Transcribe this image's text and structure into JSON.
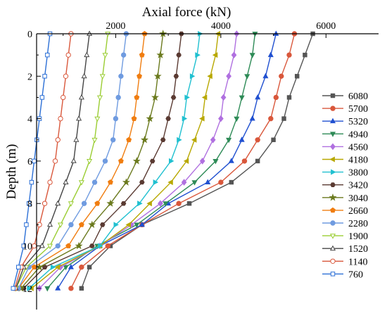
{
  "chart_data": {
    "type": "line",
    "xlabel": "Axial force (kN)",
    "ylabel": "Depth (m)",
    "xlim": [
      0,
      7000
    ],
    "ylim": [
      13,
      0
    ],
    "x_ticks": [
      2000,
      4000,
      6000
    ],
    "y_ticks": [
      0,
      2,
      4,
      6,
      8,
      10,
      12
    ],
    "x_axis_position": "top",
    "y_inverted": true,
    "grid": false,
    "legend_position": "right",
    "depths": [
      0,
      1,
      2,
      3,
      4,
      5,
      6,
      7,
      8,
      9,
      10,
      11,
      12
    ],
    "series": [
      {
        "name": "6080",
        "color": "#555555",
        "marker": "square",
        "values": [
          5750,
          5600,
          5450,
          5300,
          5200,
          5000,
          4700,
          4200,
          3400,
          2500,
          1900,
          1500,
          1350
        ]
      },
      {
        "name": "5700",
        "color": "#d9573b",
        "marker": "circle",
        "values": [
          5400,
          5300,
          5150,
          5050,
          4950,
          4700,
          4450,
          4000,
          3200,
          2500,
          1850,
          1350,
          1150
        ]
      },
      {
        "name": "5320",
        "color": "#2050d0",
        "marker": "triangle-up",
        "values": [
          5050,
          4950,
          4850,
          4700,
          4600,
          4400,
          4200,
          3750,
          3000,
          2500,
          1700,
          1150,
          900
        ]
      },
      {
        "name": "4940",
        "color": "#2e8b57",
        "marker": "triangle-down",
        "values": [
          4650,
          4600,
          4500,
          4400,
          4300,
          4150,
          3900,
          3500,
          2950,
          2400,
          1650,
          1050,
          700
        ]
      },
      {
        "name": "4560",
        "color": "#b070e0",
        "marker": "diamond",
        "values": [
          4300,
          4250,
          4150,
          4050,
          4000,
          3850,
          3650,
          3300,
          2850,
          2300,
          1700,
          950,
          550
        ]
      },
      {
        "name": "4180",
        "color": "#b8a800",
        "marker": "triangle-left",
        "values": [
          3950,
          3900,
          3800,
          3700,
          3650,
          3500,
          3350,
          3050,
          2650,
          2250,
          1700,
          900,
          400
        ]
      },
      {
        "name": "3800",
        "color": "#20c0d0",
        "marker": "triangle-right",
        "values": [
          3600,
          3550,
          3450,
          3350,
          3300,
          3200,
          3050,
          2750,
          2450,
          2000,
          1700,
          800,
          350
        ]
      },
      {
        "name": "3420",
        "color": "#5a3a32",
        "marker": "hexagon",
        "values": [
          3250,
          3200,
          3150,
          3100,
          3000,
          2900,
          2700,
          2500,
          2150,
          1750,
          1550,
          650,
          250
        ]
      },
      {
        "name": "3040",
        "color": "#6b7a1e",
        "marker": "star",
        "values": [
          2900,
          2850,
          2800,
          2750,
          2650,
          2550,
          2400,
          2200,
          1900,
          1550,
          1300,
          550,
          200
        ]
      },
      {
        "name": "2660",
        "color": "#f07d10",
        "marker": "pentagon",
        "values": [
          2550,
          2500,
          2450,
          2400,
          2350,
          2250,
          2100,
          1900,
          1650,
          1350,
          1100,
          450,
          150
        ]
      },
      {
        "name": "2280",
        "color": "#6f9be0",
        "marker": "circle",
        "values": [
          2200,
          2150,
          2100,
          2050,
          2000,
          1950,
          1800,
          1600,
          1400,
          1150,
          900,
          350,
          150
        ]
      },
      {
        "name": "1900",
        "color": "#9acd32",
        "marker": "triangle-down-open",
        "values": [
          1850,
          1800,
          1750,
          1700,
          1650,
          1600,
          1500,
          1350,
          1150,
          950,
          750,
          300,
          100
        ]
      },
      {
        "name": "1520",
        "color": "#444444",
        "marker": "triangle-up-open",
        "values": [
          1500,
          1450,
          1400,
          1350,
          1300,
          1250,
          1200,
          1050,
          900,
          750,
          600,
          250,
          100
        ]
      },
      {
        "name": "1140",
        "color": "#d9573b",
        "marker": "circle-open",
        "values": [
          1150,
          1100,
          1050,
          1000,
          950,
          900,
          850,
          750,
          650,
          550,
          450,
          200,
          80
        ]
      },
      {
        "name": "760",
        "color": "#2b6fd6",
        "marker": "square-open",
        "values": [
          750,
          700,
          650,
          600,
          550,
          500,
          450,
          400,
          350,
          300,
          250,
          150,
          50
        ]
      }
    ]
  }
}
